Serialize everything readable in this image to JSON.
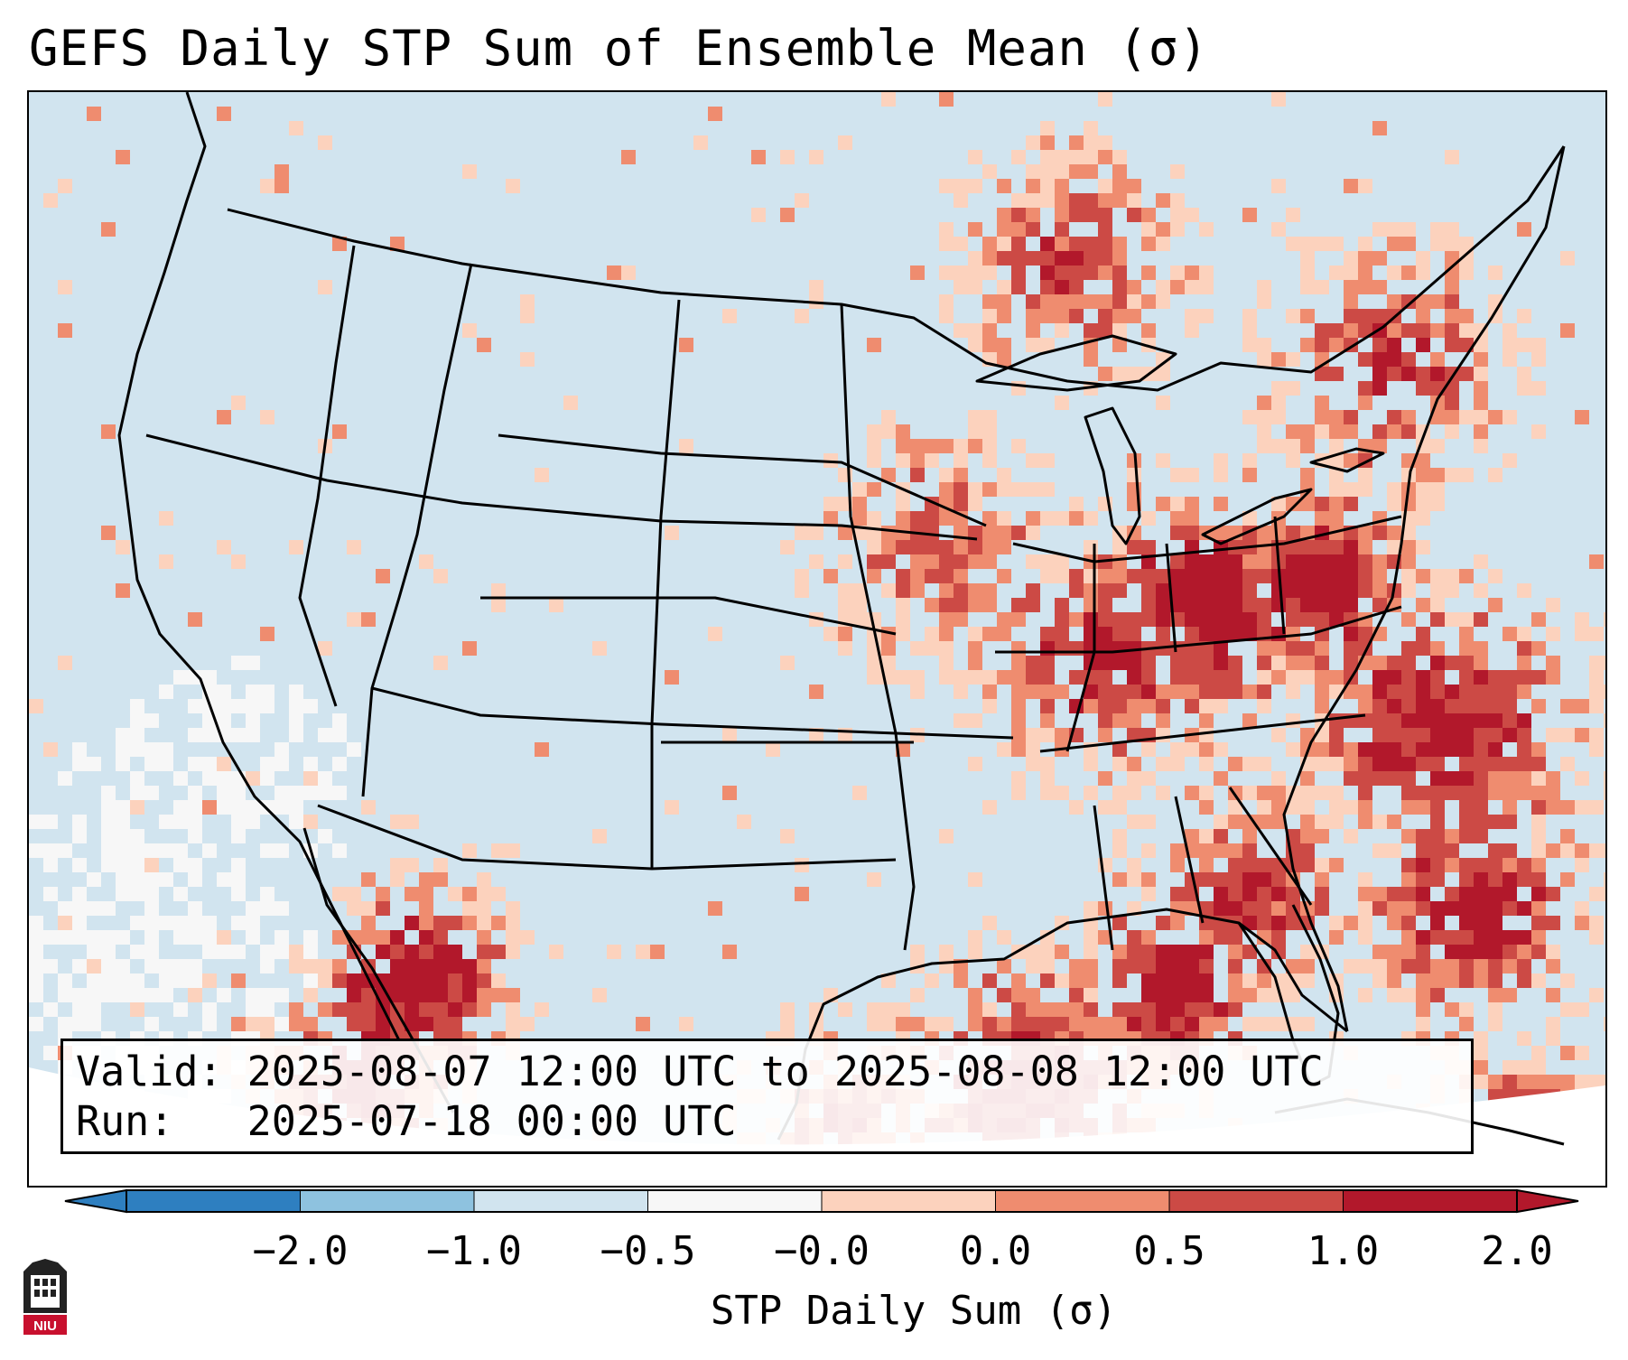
{
  "title": "GEFS Daily STP Sum of Ensemble Mean (σ)",
  "info": {
    "valid_label": "Valid:",
    "valid_value": "2025-08-07 12:00 UTC to 2025-08-08 12:00 UTC",
    "run_label": "Run:",
    "run_value": "2025-07-18 00:00 UTC"
  },
  "colorbar": {
    "label": "STP Daily Sum (σ)",
    "ticks": [
      "−2.0",
      "−1.0",
      "−0.5",
      "−0.0",
      "0.0",
      "0.5",
      "1.0",
      "2.0"
    ],
    "colors": [
      "#2e7fc0",
      "#8ec2df",
      "#d1e4ef",
      "#f7f7f7",
      "#fcd2bd",
      "#ef8c6f",
      "#cc4a45",
      "#b2182b"
    ]
  },
  "map": {
    "background_color": "#d1e4ef",
    "boundary_color": "#000000",
    "anomaly_regions": [
      {
        "name": "Great Lakes and Ohio Valley",
        "level": "high"
      },
      {
        "name": "Mid-Atlantic",
        "level": "very high"
      },
      {
        "name": "Gulf of Mexico (northeast)",
        "level": "very high"
      },
      {
        "name": "Western Atlantic",
        "level": "high"
      },
      {
        "name": "Northwest Mexico / Sierra Madre",
        "level": "very high"
      },
      {
        "name": "Southern Canada",
        "level": "moderate"
      },
      {
        "name": "Eastern Pacific",
        "level": "below normal"
      }
    ]
  },
  "logo": {
    "text": "NIU",
    "color": "#c8102e"
  }
}
